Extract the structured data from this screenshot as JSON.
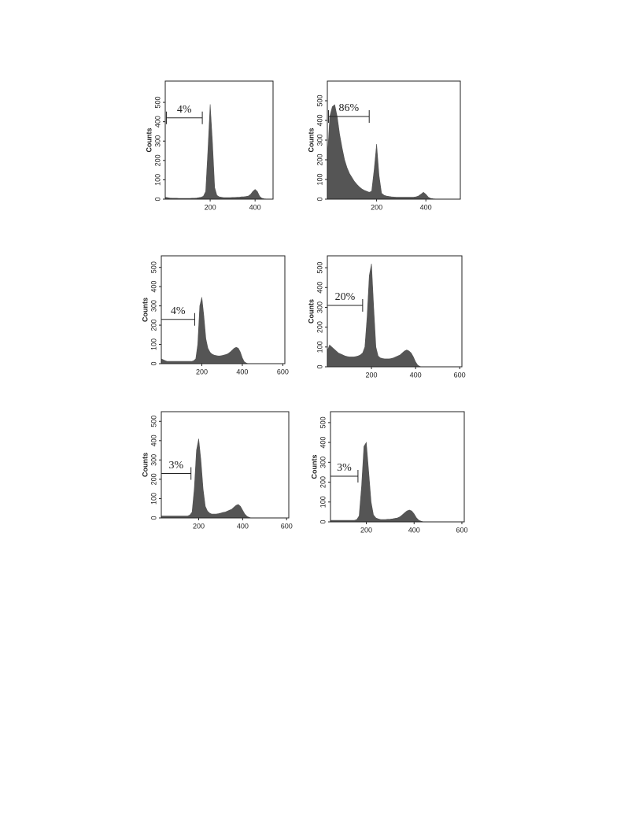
{
  "chart_data": [
    {
      "type": "area",
      "ylabel": "Counts",
      "color": "#555555",
      "x": [
        0,
        10,
        20,
        30,
        40,
        50,
        60,
        70,
        80,
        90,
        100,
        110,
        120,
        130,
        140,
        150,
        160,
        170,
        180,
        190,
        200,
        210,
        220,
        230,
        240,
        250,
        260,
        270,
        280,
        290,
        300,
        310,
        320,
        330,
        340,
        350,
        360,
        370,
        380,
        390,
        400,
        410,
        420,
        430,
        440,
        450,
        460,
        470
      ],
      "values": [
        10,
        8,
        6,
        5,
        5,
        5,
        4,
        4,
        4,
        4,
        4,
        4,
        5,
        5,
        6,
        8,
        10,
        15,
        40,
        250,
        490,
        300,
        60,
        20,
        12,
        10,
        8,
        8,
        8,
        8,
        9,
        9,
        10,
        10,
        12,
        12,
        14,
        16,
        25,
        40,
        50,
        40,
        15,
        5,
        2,
        1,
        0,
        0
      ],
      "xlim": [
        0,
        480
      ],
      "ylim": [
        0,
        610
      ],
      "xticks": [
        200,
        400
      ],
      "yticks": [
        0,
        100,
        200,
        300,
        400,
        500
      ],
      "gate": {
        "label": "4%",
        "range": [
          5,
          165
        ],
        "count": 420
      }
    },
    {
      "type": "area",
      "ylabel": "Counts",
      "color": "#555555",
      "x": [
        0,
        10,
        20,
        30,
        40,
        50,
        60,
        70,
        80,
        90,
        100,
        110,
        120,
        130,
        140,
        150,
        160,
        170,
        180,
        190,
        200,
        210,
        220,
        230,
        240,
        250,
        260,
        270,
        280,
        290,
        300,
        310,
        320,
        330,
        340,
        350,
        360,
        370,
        380,
        390,
        400,
        410,
        420,
        430,
        440,
        450
      ],
      "values": [
        200,
        420,
        470,
        480,
        420,
        330,
        260,
        200,
        160,
        130,
        110,
        90,
        75,
        62,
        52,
        45,
        40,
        35,
        40,
        150,
        280,
        120,
        30,
        20,
        16,
        14,
        12,
        11,
        10,
        10,
        10,
        10,
        10,
        10,
        10,
        10,
        12,
        16,
        25,
        35,
        25,
        10,
        4,
        2,
        1,
        0
      ],
      "xlim": [
        0,
        540
      ],
      "ylim": [
        0,
        600
      ],
      "xticks": [
        200,
        400
      ],
      "yticks": [
        0,
        100,
        200,
        300,
        400,
        500
      ],
      "gate": {
        "label": "86%",
        "range": [
          5,
          170
        ],
        "count": 420
      }
    },
    {
      "type": "area",
      "ylabel": "Counts",
      "color": "#555555",
      "x": [
        0,
        10,
        20,
        30,
        40,
        50,
        60,
        70,
        80,
        90,
        100,
        110,
        120,
        130,
        140,
        150,
        160,
        170,
        180,
        190,
        200,
        210,
        220,
        230,
        240,
        250,
        260,
        270,
        280,
        290,
        300,
        310,
        320,
        330,
        340,
        350,
        360,
        370,
        380,
        390,
        400,
        410,
        420,
        430
      ],
      "values": [
        25,
        20,
        15,
        12,
        12,
        12,
        12,
        12,
        12,
        12,
        12,
        12,
        12,
        12,
        12,
        12,
        15,
        25,
        100,
        300,
        345,
        250,
        130,
        80,
        60,
        50,
        45,
        42,
        40,
        40,
        42,
        45,
        48,
        52,
        60,
        70,
        80,
        85,
        80,
        60,
        30,
        10,
        3,
        0
      ],
      "xlim": [
        0,
        610
      ],
      "ylim": [
        0,
        560
      ],
      "xticks": [
        200,
        400,
        600
      ],
      "yticks": [
        0,
        100,
        200,
        300,
        400,
        500
      ],
      "gate": {
        "label": "4%",
        "range": [
          0,
          165
        ],
        "count": 230
      }
    },
    {
      "type": "area",
      "ylabel": "Counts",
      "color": "#555555",
      "x": [
        0,
        10,
        20,
        30,
        40,
        50,
        60,
        70,
        80,
        90,
        100,
        110,
        120,
        130,
        140,
        150,
        160,
        170,
        180,
        190,
        200,
        210,
        220,
        230,
        240,
        250,
        260,
        270,
        280,
        290,
        300,
        310,
        320,
        330,
        340,
        350,
        360,
        370,
        380,
        390,
        400,
        410,
        420,
        430
      ],
      "values": [
        80,
        110,
        100,
        90,
        80,
        70,
        65,
        60,
        55,
        52,
        50,
        50,
        50,
        52,
        55,
        60,
        70,
        100,
        250,
        460,
        520,
        300,
        100,
        55,
        45,
        42,
        40,
        40,
        40,
        42,
        45,
        50,
        55,
        60,
        70,
        80,
        85,
        80,
        70,
        50,
        25,
        8,
        2,
        0
      ],
      "xlim": [
        0,
        610
      ],
      "ylim": [
        0,
        560
      ],
      "xticks": [
        200,
        400,
        600
      ],
      "yticks": [
        0,
        100,
        200,
        300,
        400,
        500
      ],
      "gate": {
        "label": "20%",
        "range": [
          0,
          160
        ],
        "count": 310
      }
    },
    {
      "type": "area",
      "ylabel": "Counts",
      "color": "#555555",
      "x": [
        30,
        40,
        50,
        60,
        70,
        80,
        90,
        100,
        110,
        120,
        130,
        140,
        150,
        160,
        170,
        180,
        190,
        200,
        210,
        220,
        230,
        240,
        250,
        260,
        270,
        280,
        290,
        300,
        310,
        320,
        330,
        340,
        350,
        360,
        370,
        380,
        390,
        400,
        410,
        420,
        430,
        440
      ],
      "values": [
        10,
        10,
        10,
        10,
        10,
        10,
        10,
        10,
        10,
        10,
        10,
        10,
        10,
        15,
        30,
        150,
        350,
        410,
        300,
        150,
        60,
        35,
        25,
        20,
        20,
        20,
        22,
        25,
        28,
        30,
        35,
        40,
        45,
        55,
        65,
        70,
        60,
        40,
        20,
        8,
        3,
        0
      ],
      "xlim": [
        30,
        610
      ],
      "ylim": [
        0,
        550
      ],
      "xticks": [
        200,
        400,
        600
      ],
      "yticks": [
        0,
        100,
        200,
        300,
        400,
        500
      ],
      "gate": {
        "label": "3%",
        "range": [
          30,
          165
        ],
        "count": 230
      }
    },
    {
      "type": "area",
      "ylabel": "Counts",
      "color": "#555555",
      "x": [
        50,
        60,
        70,
        80,
        90,
        100,
        110,
        120,
        130,
        140,
        150,
        160,
        170,
        180,
        190,
        200,
        210,
        220,
        230,
        240,
        250,
        260,
        270,
        280,
        290,
        300,
        310,
        320,
        330,
        340,
        350,
        360,
        370,
        380,
        390,
        400,
        410,
        420,
        430,
        440
      ],
      "values": [
        8,
        8,
        8,
        8,
        8,
        8,
        8,
        8,
        8,
        8,
        8,
        12,
        30,
        180,
        380,
        400,
        250,
        100,
        35,
        20,
        15,
        12,
        12,
        12,
        13,
        14,
        15,
        18,
        20,
        25,
        35,
        45,
        55,
        60,
        55,
        40,
        20,
        8,
        3,
        0
      ],
      "xlim": [
        50,
        610
      ],
      "ylim": [
        0,
        555
      ],
      "xticks": [
        200,
        400,
        600
      ],
      "yticks": [
        0,
        100,
        200,
        300,
        400,
        500
      ],
      "gate": {
        "label": "3%",
        "range": [
          50,
          165
        ],
        "count": 230
      }
    }
  ]
}
